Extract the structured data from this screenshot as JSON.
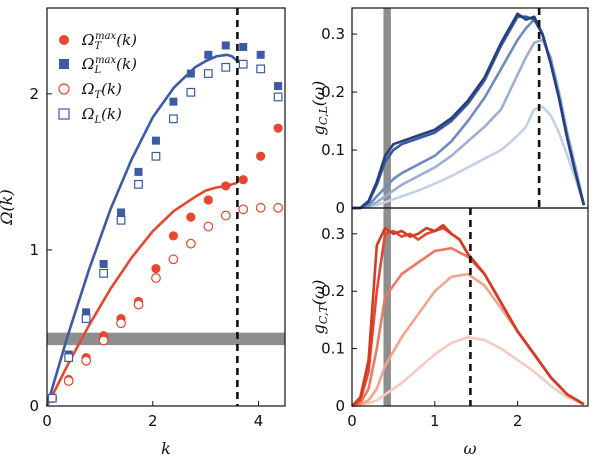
{
  "chart_data": [
    {
      "id": "left",
      "type": "scatter+line",
      "xlabel": "k",
      "ylabel": "Ω(k)",
      "xlim": [
        0,
        4.5
      ],
      "ylim": [
        0,
        2.55
      ],
      "xticks": [
        {
          "v": 0,
          "t": "0"
        },
        {
          "v": 2,
          "t": "2"
        },
        {
          "v": 4,
          "t": "4"
        }
      ],
      "yticks": [
        {
          "v": 0,
          "t": "0"
        },
        {
          "v": 1,
          "t": "1"
        },
        {
          "v": 2,
          "t": "2"
        }
      ],
      "band": {
        "y0": 0.39,
        "y1": 0.47,
        "color": "#7a7a7a"
      },
      "vline": {
        "x": 3.6
      },
      "legend": [
        {
          "label": "Ω_T^max(k)",
          "marker": "filled-circle",
          "color": "#e8472f"
        },
        {
          "label": "Ω_L^max(k)",
          "marker": "filled-square",
          "color": "#3b5ba5"
        },
        {
          "label": "Ω_T(k)",
          "marker": "open-circle",
          "color": "#e8472f"
        },
        {
          "label": "Ω_L(k)",
          "marker": "open-square",
          "color": "#3b5ba5"
        }
      ],
      "curves": [
        {
          "color": "#3b5ba5",
          "x": [
            0,
            0.4,
            0.8,
            1.2,
            1.6,
            2.0,
            2.4,
            2.8,
            3.0,
            3.2,
            3.4,
            3.5,
            3.6
          ],
          "y": [
            0,
            0.46,
            0.88,
            1.26,
            1.58,
            1.85,
            2.04,
            2.17,
            2.21,
            2.24,
            2.25,
            2.24,
            2.21
          ]
        },
        {
          "color": "#e8472f",
          "x": [
            0,
            0.4,
            0.8,
            1.2,
            1.6,
            2.0,
            2.4,
            2.8,
            3.0,
            3.2,
            3.4,
            3.6
          ],
          "y": [
            0,
            0.27,
            0.52,
            0.75,
            0.95,
            1.12,
            1.25,
            1.34,
            1.38,
            1.4,
            1.41,
            1.43
          ]
        }
      ],
      "series": [
        {
          "marker": "filled-circle",
          "color": "#e8472f",
          "x": [
            0.1,
            0.41,
            0.74,
            1.07,
            1.4,
            1.73,
            2.06,
            2.39,
            2.72,
            3.05,
            3.38,
            3.71,
            4.04,
            4.37
          ],
          "y": [
            0.05,
            0.17,
            0.31,
            0.45,
            0.56,
            0.67,
            0.88,
            1.09,
            1.21,
            1.32,
            1.41,
            1.45,
            1.6,
            1.78
          ]
        },
        {
          "marker": "filled-square",
          "color": "#3b5ba5",
          "x": [
            0.1,
            0.41,
            0.74,
            1.07,
            1.4,
            1.73,
            2.06,
            2.39,
            2.72,
            3.05,
            3.38,
            3.71,
            4.04,
            4.37
          ],
          "y": [
            0.05,
            0.33,
            0.6,
            0.91,
            1.24,
            1.5,
            1.7,
            1.95,
            2.13,
            2.25,
            2.31,
            2.3,
            2.25,
            2.05
          ]
        },
        {
          "marker": "open-circle",
          "color": "#e8472f",
          "x": [
            0.1,
            0.41,
            0.74,
            1.07,
            1.4,
            1.73,
            2.06,
            2.39,
            2.72,
            3.05,
            3.38,
            3.71,
            4.04,
            4.37
          ],
          "y": [
            0.05,
            0.16,
            0.29,
            0.42,
            0.53,
            0.65,
            0.82,
            0.94,
            1.04,
            1.15,
            1.22,
            1.26,
            1.27,
            1.27
          ]
        },
        {
          "marker": "open-square",
          "color": "#3b5ba5",
          "x": [
            0.1,
            0.41,
            0.74,
            1.07,
            1.4,
            1.73,
            2.06,
            2.39,
            2.72,
            3.05,
            3.38,
            3.71,
            4.04,
            4.37
          ],
          "y": [
            0.05,
            0.31,
            0.56,
            0.85,
            1.19,
            1.42,
            1.6,
            1.84,
            2.01,
            2.13,
            2.17,
            2.19,
            2.16,
            1.98
          ]
        }
      ]
    },
    {
      "id": "right-top",
      "type": "line",
      "ylabel": "g_{C,L}(ω)",
      "xlim": [
        0,
        2.85
      ],
      "ylim": [
        0,
        0.345
      ],
      "yticks": [
        {
          "v": 0,
          "t": "0"
        },
        {
          "v": 0.1,
          "t": "0.1"
        },
        {
          "v": 0.2,
          "t": "0.2"
        },
        {
          "v": 0.3,
          "t": "0.3"
        }
      ],
      "band": {
        "x0": 0.38,
        "x1": 0.47,
        "color": "#7a7a7a"
      },
      "vline": {
        "x": 2.26
      },
      "series": [
        {
          "color": "#c3d0e6",
          "x": [
            0,
            0.1,
            0.2,
            0.3,
            0.4,
            0.5,
            0.6,
            0.8,
            1.0,
            1.2,
            1.4,
            1.6,
            1.8,
            1.9,
            2.0,
            2.1,
            2.2,
            2.3,
            2.4,
            2.5,
            2.6,
            2.7,
            2.8
          ],
          "y": [
            0,
            0.0,
            0.002,
            0.005,
            0.01,
            0.015,
            0.02,
            0.03,
            0.042,
            0.055,
            0.07,
            0.085,
            0.1,
            0.112,
            0.125,
            0.14,
            0.17,
            0.175,
            0.16,
            0.13,
            0.09,
            0.05,
            0.005
          ]
        },
        {
          "color": "#9aafd3",
          "x": [
            0,
            0.1,
            0.2,
            0.3,
            0.4,
            0.5,
            0.6,
            0.8,
            1.0,
            1.2,
            1.4,
            1.6,
            1.8,
            1.9,
            2.0,
            2.1,
            2.2,
            2.3,
            2.4,
            2.5,
            2.6,
            2.7,
            2.8
          ],
          "y": [
            0,
            0.0,
            0.003,
            0.01,
            0.02,
            0.03,
            0.04,
            0.055,
            0.07,
            0.09,
            0.115,
            0.14,
            0.17,
            0.2,
            0.23,
            0.26,
            0.285,
            0.29,
            0.26,
            0.2,
            0.13,
            0.07,
            0.005
          ]
        },
        {
          "color": "#6f8ac0",
          "x": [
            0,
            0.1,
            0.2,
            0.3,
            0.4,
            0.5,
            0.6,
            0.8,
            1.0,
            1.2,
            1.4,
            1.6,
            1.8,
            1.9,
            2.0,
            2.1,
            2.2,
            2.3,
            2.4,
            2.5,
            2.6,
            2.7,
            2.8
          ],
          "y": [
            0,
            0.0,
            0.005,
            0.02,
            0.035,
            0.05,
            0.06,
            0.075,
            0.09,
            0.115,
            0.15,
            0.19,
            0.24,
            0.265,
            0.29,
            0.31,
            0.325,
            0.3,
            0.25,
            0.19,
            0.12,
            0.06,
            0.005
          ]
        },
        {
          "color": "#3d5a9e",
          "x": [
            0,
            0.1,
            0.2,
            0.3,
            0.4,
            0.5,
            0.6,
            0.8,
            1.0,
            1.2,
            1.4,
            1.6,
            1.8,
            1.9,
            2.0,
            2.1,
            2.2,
            2.3,
            2.4,
            2.5,
            2.6,
            2.7,
            2.8
          ],
          "y": [
            0,
            0.0,
            0.01,
            0.04,
            0.08,
            0.1,
            0.11,
            0.12,
            0.13,
            0.15,
            0.18,
            0.22,
            0.28,
            0.305,
            0.33,
            0.33,
            0.325,
            0.3,
            0.25,
            0.19,
            0.12,
            0.06,
            0.005
          ]
        },
        {
          "color": "#26407f",
          "x": [
            0,
            0.1,
            0.2,
            0.3,
            0.4,
            0.5,
            0.6,
            0.8,
            1.0,
            1.2,
            1.4,
            1.6,
            1.8,
            1.9,
            2.0,
            2.1,
            2.2,
            2.3,
            2.4,
            2.5,
            2.6,
            2.7,
            2.8
          ],
          "y": [
            0,
            0.0,
            0.012,
            0.045,
            0.09,
            0.11,
            0.115,
            0.125,
            0.135,
            0.155,
            0.185,
            0.225,
            0.285,
            0.31,
            0.335,
            0.325,
            0.33,
            0.3,
            0.25,
            0.19,
            0.12,
            0.06,
            0.005
          ]
        }
      ]
    },
    {
      "id": "right-bottom",
      "type": "line",
      "xlabel": "ω",
      "ylabel": "g_{C,T}(ω)",
      "xlim": [
        0,
        2.85
      ],
      "ylim": [
        0,
        0.345
      ],
      "xticks": [
        {
          "v": 0,
          "t": "0"
        },
        {
          "v": 1,
          "t": "1"
        },
        {
          "v": 2,
          "t": "2"
        }
      ],
      "yticks": [
        {
          "v": 0,
          "t": "0"
        },
        {
          "v": 0.1,
          "t": "0.1"
        },
        {
          "v": 0.2,
          "t": "0.2"
        },
        {
          "v": 0.3,
          "t": "0.3"
        }
      ],
      "band": {
        "x0": 0.38,
        "x1": 0.47,
        "color": "#7a7a7a"
      },
      "vline": {
        "x": 1.43
      },
      "series": [
        {
          "color": "#f6cbbf",
          "x": [
            0,
            0.1,
            0.2,
            0.3,
            0.4,
            0.6,
            0.8,
            1.0,
            1.2,
            1.4,
            1.6,
            1.8,
            2.0,
            2.2,
            2.4,
            2.6,
            2.8
          ],
          "y": [
            0,
            0.002,
            0.005,
            0.01,
            0.02,
            0.04,
            0.065,
            0.09,
            0.11,
            0.12,
            0.115,
            0.1,
            0.08,
            0.06,
            0.035,
            0.015,
            0.003
          ]
        },
        {
          "color": "#f1a48f",
          "x": [
            0,
            0.1,
            0.2,
            0.3,
            0.4,
            0.6,
            0.8,
            1.0,
            1.2,
            1.4,
            1.6,
            1.8,
            2.0,
            2.2,
            2.4,
            2.6,
            2.8
          ],
          "y": [
            0,
            0.003,
            0.01,
            0.03,
            0.07,
            0.12,
            0.16,
            0.2,
            0.225,
            0.23,
            0.21,
            0.17,
            0.13,
            0.09,
            0.05,
            0.02,
            0.003
          ]
        },
        {
          "color": "#ec7a62",
          "x": [
            0,
            0.1,
            0.2,
            0.3,
            0.4,
            0.6,
            0.8,
            1.0,
            1.2,
            1.4,
            1.6,
            1.8,
            2.0,
            2.2,
            2.4,
            2.6,
            2.8
          ],
          "y": [
            0,
            0.005,
            0.03,
            0.1,
            0.19,
            0.23,
            0.25,
            0.27,
            0.275,
            0.26,
            0.23,
            0.18,
            0.13,
            0.09,
            0.05,
            0.02,
            0.003
          ]
        },
        {
          "color": "#e04a30",
          "x": [
            0,
            0.1,
            0.2,
            0.3,
            0.4,
            0.5,
            0.6,
            0.7,
            0.8,
            0.9,
            1.0,
            1.1,
            1.2,
            1.3,
            1.4,
            1.6,
            1.8,
            2.0,
            2.2,
            2.4,
            2.6,
            2.8
          ],
          "y": [
            0,
            0.01,
            0.06,
            0.2,
            0.3,
            0.305,
            0.295,
            0.3,
            0.29,
            0.3,
            0.305,
            0.31,
            0.3,
            0.29,
            0.265,
            0.23,
            0.18,
            0.13,
            0.09,
            0.05,
            0.02,
            0.003
          ]
        },
        {
          "color": "#d43b22",
          "x": [
            0,
            0.1,
            0.2,
            0.3,
            0.4,
            0.5,
            0.6,
            0.7,
            0.8,
            0.9,
            1.0,
            1.1,
            1.2,
            1.3,
            1.4,
            1.6,
            1.8,
            2.0,
            2.2,
            2.4,
            2.6,
            2.8
          ],
          "y": [
            0,
            0.015,
            0.08,
            0.28,
            0.31,
            0.3,
            0.305,
            0.295,
            0.3,
            0.31,
            0.305,
            0.315,
            0.3,
            0.29,
            0.265,
            0.23,
            0.18,
            0.13,
            0.09,
            0.05,
            0.02,
            0.003
          ]
        }
      ]
    }
  ]
}
